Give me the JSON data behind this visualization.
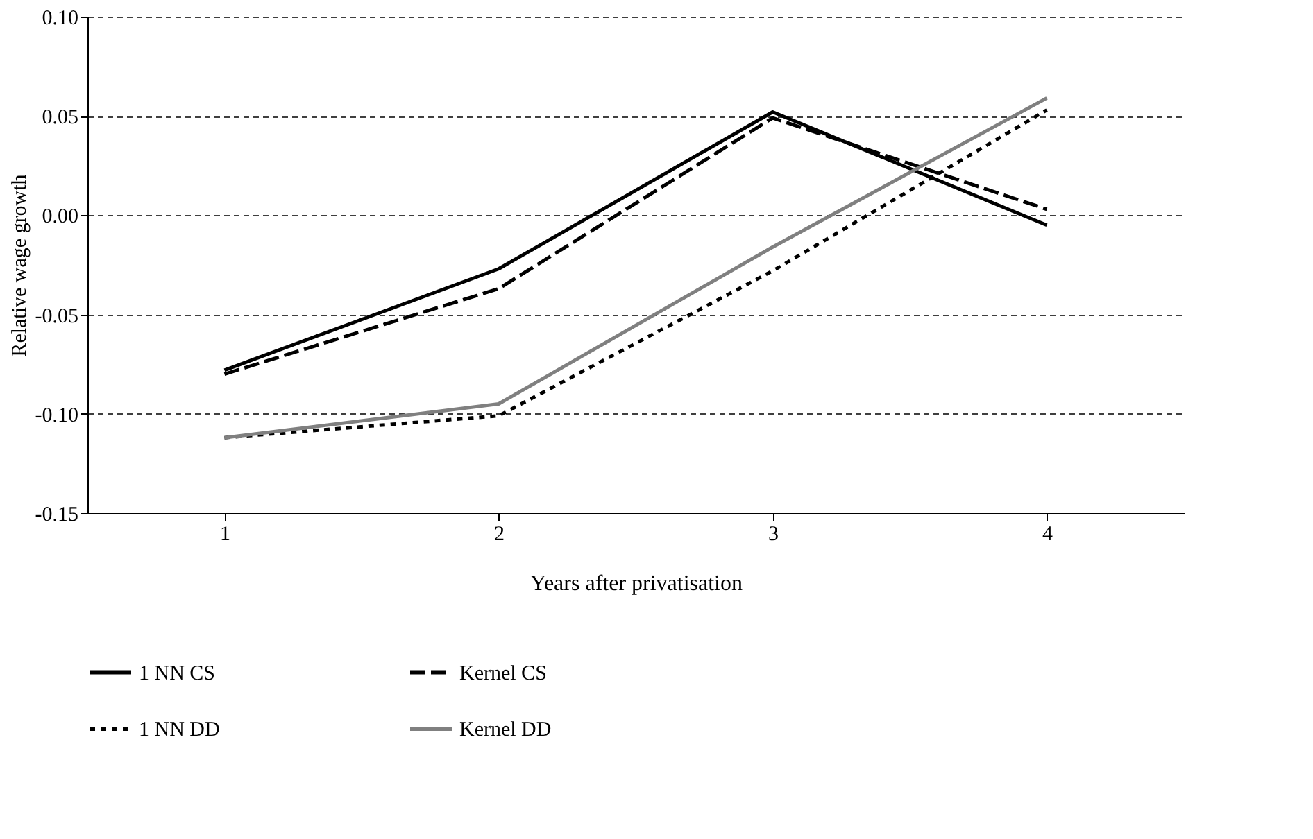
{
  "chart_data": {
    "type": "line",
    "xlabel": "Years after privatisation",
    "ylabel": "Relative wage growth",
    "categories": [
      "1",
      "2",
      "3",
      "4"
    ],
    "series": [
      {
        "name": "1 NN CS",
        "color": "#000000",
        "line_style": "solid",
        "values": [
          -0.078,
          -0.027,
          0.052,
          -0.005
        ]
      },
      {
        "name": "Kernel CS",
        "color": "#000000",
        "line_style": "dashed",
        "values": [
          -0.08,
          -0.037,
          0.049,
          0.003
        ]
      },
      {
        "name": "1 NN DD",
        "color": "#000000",
        "line_style": "dotted",
        "values": [
          -0.112,
          -0.101,
          -0.028,
          0.053
        ]
      },
      {
        "name": "Kernel DD",
        "color": "#808080",
        "line_style": "solid",
        "values": [
          -0.112,
          -0.095,
          -0.016,
          0.059
        ]
      }
    ],
    "ylim": [
      -0.15,
      0.1
    ],
    "yticks": [
      {
        "value": -0.15,
        "label": "-0.15"
      },
      {
        "value": -0.1,
        "label": "-0.10"
      },
      {
        "value": -0.05,
        "label": "-0.05"
      },
      {
        "value": 0,
        "label": "0.00"
      },
      {
        "value": 0.05,
        "label": "0.05"
      },
      {
        "value": 0.1,
        "label": "0.10"
      }
    ],
    "grid": "y",
    "legend": "bottom",
    "marker": "none"
  }
}
